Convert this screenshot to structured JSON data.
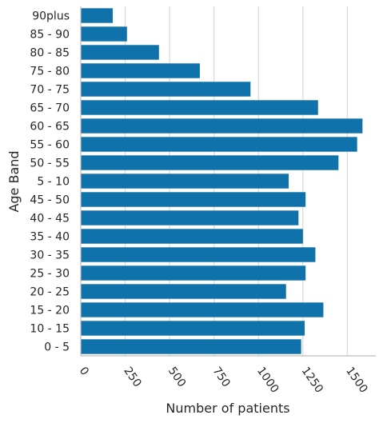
{
  "chart_data": {
    "type": "bar",
    "orientation": "horizontal",
    "xlabel": "Number of patients",
    "ylabel": "Age Band",
    "xlim": [
      0,
      1660
    ],
    "xticks": [
      0,
      250,
      500,
      750,
      1000,
      1250,
      1500
    ],
    "tick_labels": [
      "0",
      "250",
      "500",
      "750",
      "1000",
      "1250",
      "1500"
    ],
    "grid": "vertical",
    "bar_color": "#0f72aa",
    "categories": [
      "90plus",
      "85 - 90",
      "80 - 85",
      "75 - 80",
      "70 - 75",
      "65 - 70",
      "60 - 65",
      "55 - 60",
      "50 - 55",
      "5 - 10",
      "45 - 50",
      "40 - 45",
      "35 - 40",
      "30 - 35",
      "25 - 30",
      "20 - 25",
      "15 - 20",
      "10 - 15",
      "0 - 5"
    ],
    "values": [
      180,
      260,
      440,
      670,
      955,
      1335,
      1585,
      1555,
      1450,
      1170,
      1265,
      1225,
      1250,
      1320,
      1265,
      1155,
      1365,
      1260,
      1240
    ]
  }
}
